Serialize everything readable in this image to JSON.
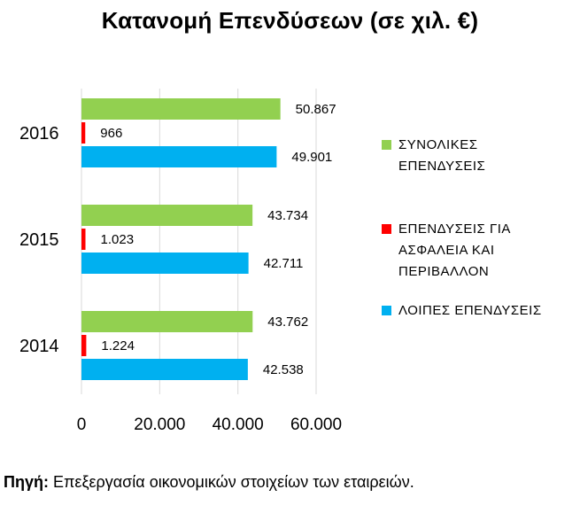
{
  "chart_data": {
    "type": "bar",
    "orientation": "horizontal",
    "title": "Κατανομή Επενδύσεων (σε χιλ. €)",
    "categories": [
      "2016",
      "2015",
      "2014"
    ],
    "series": [
      {
        "name": "ΣΥΝΟΛΙΚΕΣ ΕΠΕΝΔΥΣΕΙΣ",
        "legend_lines": [
          "ΣΥΝΟΛΙΚΕΣ",
          "ΕΠΕΝΔΥΣΕΙΣ"
        ],
        "color": "#92d050",
        "values": [
          50867,
          43734,
          43762
        ],
        "labels": [
          "50.867",
          "43.734",
          "43.762"
        ]
      },
      {
        "name": "ΕΠΕΝΔΥΣΕΙΣ ΓΙΑ ΑΣΦΑΛΕΙΑ ΚΑΙ ΠΕΡΙΒΑΛΛΟΝ",
        "legend_lines": [
          "ΕΠΕΝΔΥΣΕΙΣ ΓΙΑ",
          "ΑΣΦΑΛΕΙΑ ΚΑΙ",
          "ΠΕΡΙΒΑΛΛΟΝ"
        ],
        "color": "#ff0000",
        "values": [
          966,
          1023,
          1224
        ],
        "labels": [
          "966",
          "1.023",
          "1.224"
        ]
      },
      {
        "name": "ΛΟΙΠΕΣ ΕΠΕΝΔΥΣΕΙΣ",
        "legend_lines": [
          "ΛΟΙΠΕΣ ΕΠΕΝΔΥΣΕΙΣ"
        ],
        "color": "#00b0f0",
        "values": [
          49901,
          42711,
          42538
        ],
        "labels": [
          "49.901",
          "42.711",
          "42.538"
        ]
      }
    ],
    "xlim": [
      0,
      60000
    ],
    "x_ticks": [
      0,
      20000,
      40000,
      60000
    ],
    "x_tick_labels": [
      "0",
      "20.000",
      "40.000",
      "60.000"
    ],
    "grid": true,
    "legend": "right"
  },
  "source": {
    "label": "Πηγή:",
    "text": " Επεξεργασία οικονομικών στοιχείων των εταιρειών."
  }
}
